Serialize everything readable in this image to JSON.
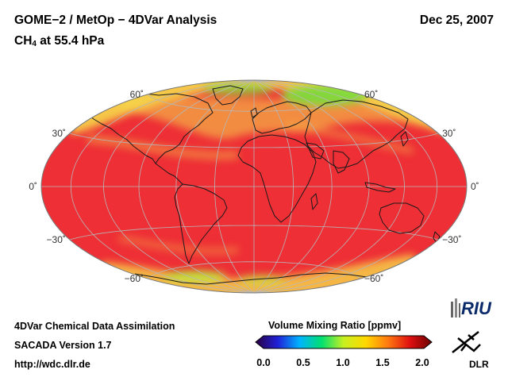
{
  "header": {
    "title": "GOME−2 / MetOp − 4DVar Analysis",
    "date": "Dec 25, 2007",
    "species_main": "CH",
    "species_sub": "4",
    "species_level": " at 55.4 hPa"
  },
  "map": {
    "projection": "Hammer-Aitoff",
    "latitude_labels_left": [
      "60˚",
      "30˚",
      "0˚",
      "−30˚",
      "−60˚"
    ],
    "latitude_labels_right": [
      "60˚",
      "30˚",
      "0˚",
      "−30˚",
      "−60˚"
    ],
    "latitude_values": [
      60,
      30,
      0,
      -30,
      -60
    ],
    "colors": {
      "background_field": "#ee2f36",
      "high_latitude_field": "#f6d84a",
      "arctic_low": "#7ddc3c",
      "antarctic_low": "#bde63e",
      "grid": "#b7b7b7",
      "coastline": "#1a1a1a"
    }
  },
  "footer": {
    "line1": "4DVar Chemical Data Assimilation",
    "line2": "SACADA Version 1.7",
    "line3": "http://wdc.dlr.de"
  },
  "colorbar": {
    "title": "Volume Mixing Ratio [ppmv]",
    "ticks": [
      "0.0",
      "0.5",
      "1.0",
      "1.5",
      "2.0"
    ],
    "tick_values": [
      0.0,
      0.5,
      1.0,
      1.5,
      2.0
    ],
    "min": 0.0,
    "max": 2.0,
    "stops": [
      "#2a0040",
      "#2020d8",
      "#00b4ff",
      "#00e070",
      "#c8f020",
      "#ffd800",
      "#ff7a10",
      "#e01010",
      "#6a0000"
    ]
  },
  "logos": {
    "riu": "RIU",
    "dlr": "DLR"
  }
}
